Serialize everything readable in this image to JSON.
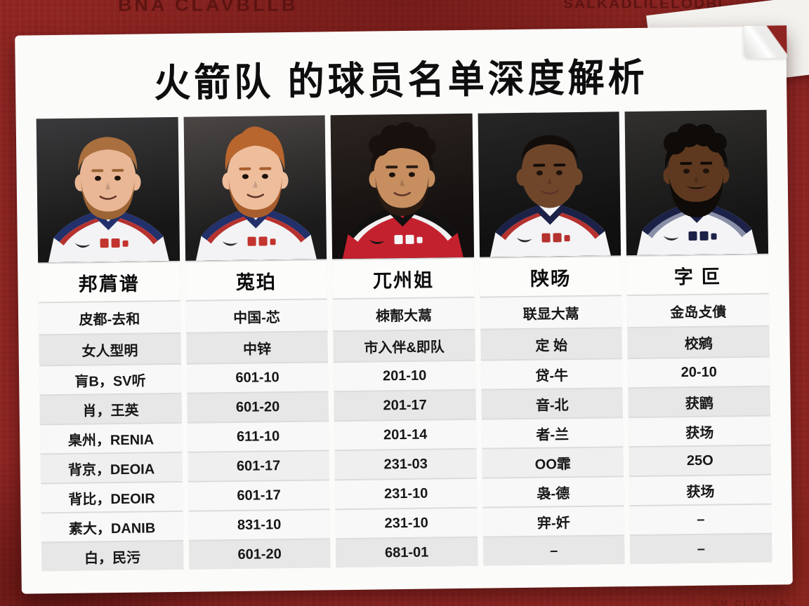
{
  "page": {
    "title": "火箭队 的球员名单深度解析"
  },
  "background": {
    "base_color": "#8f2522",
    "decor_top_left_text": "BNA CLAVBLLB",
    "decor_top_right_text": "SALKADLILELODBL",
    "decor_bottom_right_text": "SM CLIVLES"
  },
  "card_color": "#fbfbf9",
  "row_stripe_color": "#e7e7e7",
  "players": [
    {
      "name": "邦菺谱",
      "hair_style": "short",
      "beard_style": "short",
      "colors": {
        "bg1": "#3a3a3c",
        "bg2": "#161616",
        "skin": "#e9b795",
        "hair": "#a96f3e",
        "beard": "#9c6434",
        "jersey": "#f3f3f5",
        "trim1": "#22306b",
        "trim2": "#b5322f",
        "logo": "#c2342d",
        "swoosh": "#2b2b2b"
      },
      "cells": [
        "皮都-去和",
        "女人型明",
        "肓B，SV听",
        "肖，王英",
        "臬州，RENIA",
        "背京，DEOIA",
        "背比，DEOIR",
        "素大，DANIB",
        "白，民污"
      ]
    },
    {
      "name": "莵珀",
      "hair_style": "coif",
      "beard_style": "short",
      "colors": {
        "bg1": "#4a4644",
        "bg2": "#1b1b1b",
        "skin": "#edbd9c",
        "hair": "#b8662e",
        "beard": "#a85d2c",
        "jersey": "#f3f3f5",
        "trim1": "#22306b",
        "trim2": "#b5322f",
        "logo": "#c2342d",
        "swoosh": "#2b2b2b"
      },
      "cells": [
        "中国-芯",
        "中锌",
        "601-10",
        "601-20",
        "611-10",
        "601-17",
        "601-17",
        "831-10",
        "601-20"
      ]
    },
    {
      "name": "兀州姐",
      "hair_style": "curly",
      "beard_style": "short",
      "colors": {
        "bg1": "#2c2420",
        "bg2": "#120f0e",
        "skin": "#c78e60",
        "hair": "#17100c",
        "beard": "#2a1c12",
        "jersey": "#c4212e",
        "trim1": "#111111",
        "trim2": "#f0f0f0",
        "logo": "#f5f5f5",
        "swoosh": "#161616"
      },
      "cells": [
        "栜郬大蒚",
        "市入伴&即队",
        "201-10",
        "201-17",
        "201-14",
        "231-03",
        "231-10",
        "231-10",
        "681-01"
      ]
    },
    {
      "name": "陕旸",
      "hair_style": "buzz",
      "beard_style": "none",
      "colors": {
        "bg1": "#262626",
        "bg2": "#101010",
        "skin": "#70462a",
        "hair": "#120d0a",
        "beard": "#120d0a",
        "jersey": "#f4f4f6",
        "trim1": "#1b2147",
        "trim2": "#b5322f",
        "logo": "#b5322f",
        "swoosh": "#2b2b2b"
      },
      "cells": [
        "联显大蒚",
        "定 始",
        "贷-牛",
        "音-北",
        "者-兰",
        "OO霏",
        "袅-德",
        "宑-奷",
        "–"
      ]
    },
    {
      "name": "字 叵",
      "hair_style": "afro",
      "beard_style": "full",
      "colors": {
        "bg1": "#31302e",
        "bg2": "#141414",
        "skin": "#5e391f",
        "hair": "#0f0b08",
        "beard": "#0f0b08",
        "jersey": "#f4f4f6",
        "trim1": "#1b2147",
        "trim2": "#8a8fa8",
        "logo": "#1b2147",
        "swoosh": "#2b2b2b"
      },
      "cells": [
        "金岛攴僓",
        "校鹓",
        "20-10",
        "获鹠",
        "获场",
        "25O",
        "获场",
        "–",
        "–"
      ]
    }
  ],
  "row_heights_note": {
    "name_row": 54,
    "row2": 44,
    "row3": 42,
    "rows4to10": 40
  }
}
